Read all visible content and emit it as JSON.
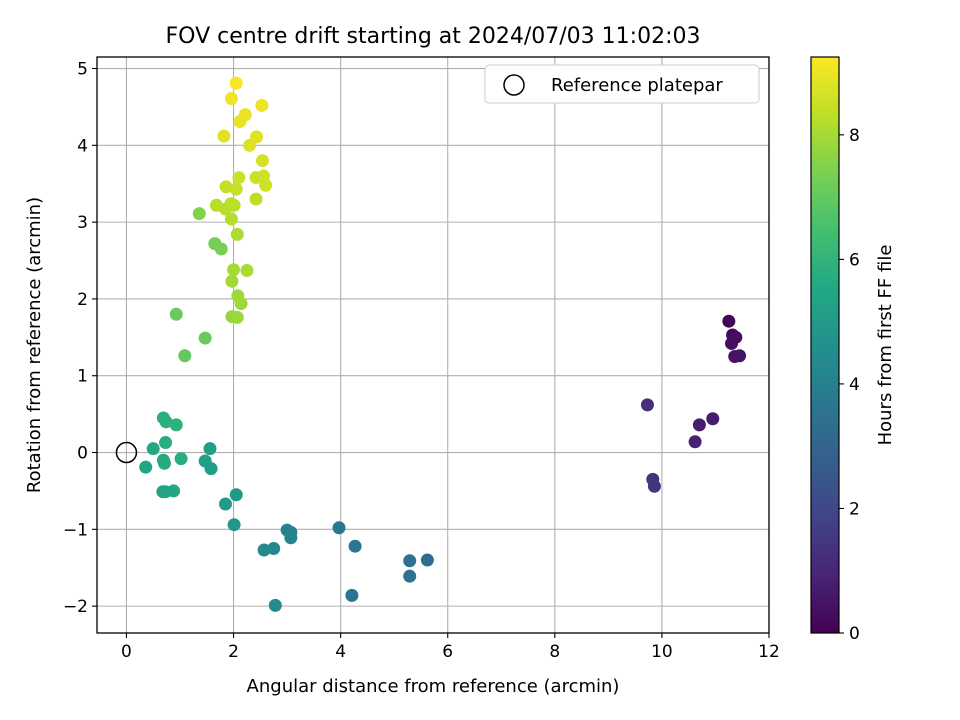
{
  "chart_data": {
    "type": "scatter",
    "title": "FOV centre drift starting at 2024/07/03 11:02:03",
    "xlabel": "Angular distance from reference (arcmin)",
    "ylabel": "Rotation from reference (arcmin)",
    "xlim": [
      -0.55,
      12.0
    ],
    "ylim": [
      -2.35,
      5.15
    ],
    "xticks": [
      0,
      2,
      4,
      6,
      8,
      10,
      12
    ],
    "yticks": [
      -2,
      -1,
      0,
      1,
      2,
      3,
      4,
      5
    ],
    "grid": true,
    "legend": {
      "placement": "top-right",
      "entries": [
        "Reference platepar"
      ]
    },
    "reference_point": {
      "label": "Reference platepar",
      "x": 0,
      "y": 0
    },
    "colorbar": {
      "label": "Hours from first FF file",
      "range": [
        0,
        9.25
      ],
      "ticks": [
        0,
        2,
        4,
        6,
        8
      ],
      "colormap": "viridis"
    },
    "points": [
      {
        "x": 11.25,
        "y": 1.71,
        "c": 0.1
      },
      {
        "x": 11.32,
        "y": 1.53,
        "c": 0.2
      },
      {
        "x": 11.38,
        "y": 1.5,
        "c": 0.3
      },
      {
        "x": 11.3,
        "y": 1.42,
        "c": 0.35
      },
      {
        "x": 11.36,
        "y": 1.25,
        "c": 0.45
      },
      {
        "x": 11.45,
        "y": 1.26,
        "c": 0.5
      },
      {
        "x": 10.95,
        "y": 0.44,
        "c": 0.7
      },
      {
        "x": 10.7,
        "y": 0.36,
        "c": 0.8
      },
      {
        "x": 10.62,
        "y": 0.14,
        "c": 0.9
      },
      {
        "x": 9.73,
        "y": 0.62,
        "c": 1.2
      },
      {
        "x": 9.83,
        "y": -0.35,
        "c": 1.3
      },
      {
        "x": 9.86,
        "y": -0.44,
        "c": 1.4
      },
      {
        "x": 5.62,
        "y": -1.4,
        "c": 3.3
      },
      {
        "x": 5.29,
        "y": -1.41,
        "c": 3.4
      },
      {
        "x": 5.29,
        "y": -1.61,
        "c": 3.45
      },
      {
        "x": 4.27,
        "y": -1.22,
        "c": 3.6
      },
      {
        "x": 4.21,
        "y": -1.86,
        "c": 3.5
      },
      {
        "x": 3.97,
        "y": -0.98,
        "c": 3.7
      },
      {
        "x": 3.0,
        "y": -1.01,
        "c": 4.1
      },
      {
        "x": 3.07,
        "y": -1.04,
        "c": 4.1
      },
      {
        "x": 3.07,
        "y": -1.11,
        "c": 4.15
      },
      {
        "x": 2.75,
        "y": -1.25,
        "c": 4.3
      },
      {
        "x": 2.57,
        "y": -1.27,
        "c": 4.35
      },
      {
        "x": 2.78,
        "y": -1.99,
        "c": 4.4
      },
      {
        "x": 2.01,
        "y": -0.94,
        "c": 4.85
      },
      {
        "x": 2.05,
        "y": -0.55,
        "c": 4.95
      },
      {
        "x": 1.85,
        "y": -0.67,
        "c": 5.0
      },
      {
        "x": 1.58,
        "y": -0.21,
        "c": 5.1
      },
      {
        "x": 1.56,
        "y": 0.05,
        "c": 5.15
      },
      {
        "x": 1.47,
        "y": -0.11,
        "c": 5.2
      },
      {
        "x": 0.68,
        "y": -0.51,
        "c": 5.35
      },
      {
        "x": 0.73,
        "y": -0.51,
        "c": 5.4
      },
      {
        "x": 0.88,
        "y": -0.5,
        "c": 5.45
      },
      {
        "x": 0.36,
        "y": -0.19,
        "c": 5.5
      },
      {
        "x": 0.5,
        "y": 0.05,
        "c": 5.55
      },
      {
        "x": 0.69,
        "y": -0.1,
        "c": 5.6
      },
      {
        "x": 0.71,
        "y": -0.14,
        "c": 5.65
      },
      {
        "x": 0.73,
        "y": 0.13,
        "c": 5.7
      },
      {
        "x": 1.02,
        "y": -0.08,
        "c": 5.75
      },
      {
        "x": 0.69,
        "y": 0.45,
        "c": 5.8
      },
      {
        "x": 0.74,
        "y": 0.4,
        "c": 5.85
      },
      {
        "x": 0.93,
        "y": 0.36,
        "c": 5.9
      },
      {
        "x": 1.09,
        "y": 1.26,
        "c": 7.0
      },
      {
        "x": 1.47,
        "y": 1.49,
        "c": 7.05
      },
      {
        "x": 0.93,
        "y": 1.8,
        "c": 7.1
      },
      {
        "x": 1.65,
        "y": 2.72,
        "c": 7.3
      },
      {
        "x": 1.77,
        "y": 2.65,
        "c": 7.35
      },
      {
        "x": 1.36,
        "y": 3.11,
        "c": 7.5
      },
      {
        "x": 1.97,
        "y": 1.77,
        "c": 7.8
      },
      {
        "x": 2.07,
        "y": 1.76,
        "c": 7.85
      },
      {
        "x": 2.14,
        "y": 1.94,
        "c": 7.9
      },
      {
        "x": 2.08,
        "y": 2.04,
        "c": 7.9
      },
      {
        "x": 1.97,
        "y": 2.23,
        "c": 7.95
      },
      {
        "x": 2.0,
        "y": 2.38,
        "c": 8.0
      },
      {
        "x": 2.25,
        "y": 2.37,
        "c": 8.05
      },
      {
        "x": 2.07,
        "y": 2.84,
        "c": 8.1
      },
      {
        "x": 1.96,
        "y": 3.04,
        "c": 8.2
      },
      {
        "x": 1.68,
        "y": 3.22,
        "c": 8.25
      },
      {
        "x": 1.85,
        "y": 3.17,
        "c": 8.25
      },
      {
        "x": 1.95,
        "y": 3.24,
        "c": 8.3
      },
      {
        "x": 2.01,
        "y": 3.22,
        "c": 8.3
      },
      {
        "x": 2.42,
        "y": 3.3,
        "c": 8.35
      },
      {
        "x": 1.86,
        "y": 3.46,
        "c": 8.4
      },
      {
        "x": 2.05,
        "y": 3.43,
        "c": 8.45
      },
      {
        "x": 2.1,
        "y": 3.58,
        "c": 8.5
      },
      {
        "x": 2.42,
        "y": 3.58,
        "c": 8.5
      },
      {
        "x": 2.56,
        "y": 3.6,
        "c": 8.55
      },
      {
        "x": 2.6,
        "y": 3.48,
        "c": 8.55
      },
      {
        "x": 2.54,
        "y": 3.8,
        "c": 8.65
      },
      {
        "x": 2.3,
        "y": 4.0,
        "c": 8.75
      },
      {
        "x": 2.43,
        "y": 4.11,
        "c": 8.8
      },
      {
        "x": 1.82,
        "y": 4.12,
        "c": 8.8
      },
      {
        "x": 2.12,
        "y": 4.31,
        "c": 8.9
      },
      {
        "x": 2.22,
        "y": 4.4,
        "c": 8.95
      },
      {
        "x": 2.53,
        "y": 4.52,
        "c": 9.0
      },
      {
        "x": 1.96,
        "y": 4.61,
        "c": 9.05
      },
      {
        "x": 2.05,
        "y": 4.81,
        "c": 9.15
      }
    ]
  }
}
